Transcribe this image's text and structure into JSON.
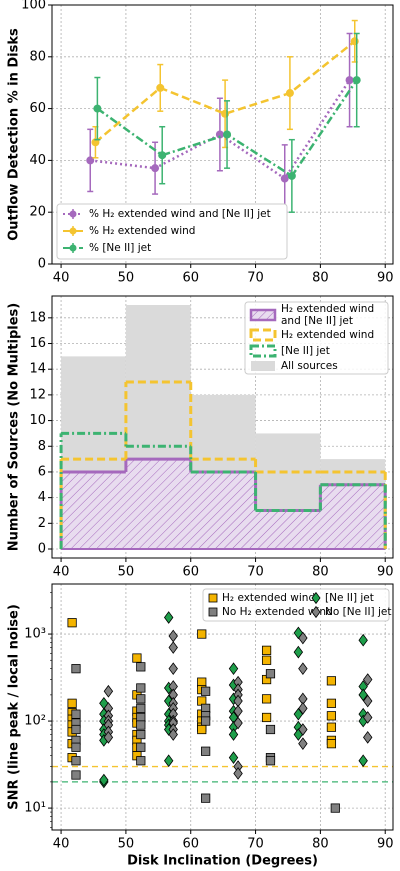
{
  "chart_data": [
    {
      "type": "line",
      "ylabel": "Outflow Detection % in Disks",
      "xlim": [
        38.6,
        91.2
      ],
      "ylim": [
        0,
        100
      ],
      "xticks": [
        40,
        50,
        60,
        70,
        80,
        90
      ],
      "yticks": [
        0,
        20,
        40,
        60,
        80,
        100
      ],
      "grid": true,
      "legend": "lower left",
      "series": [
        {
          "name": "% H₂ extended wind and [Ne II] jet",
          "color": "#a569bd",
          "linestyle": "dotted",
          "x": [
            44.5,
            54.5,
            64.5,
            74.5,
            84.5
          ],
          "values": [
            40,
            37,
            50,
            33,
            71
          ],
          "errors": [
            12,
            10,
            14,
            13,
            18
          ]
        },
        {
          "name": "% H₂ extended wind",
          "color": "#f4c430",
          "linestyle": "dashed",
          "x": [
            45.3,
            55.3,
            65.3,
            75.3,
            85.3
          ],
          "values": [
            47,
            68,
            58,
            66,
            86
          ],
          "errors": [
            6,
            9,
            13,
            14,
            8
          ]
        },
        {
          "name": "% [Ne II] jet",
          "color": "#3cb371",
          "linestyle": "dashdot",
          "x": [
            45.6,
            55.6,
            65.6,
            75.6,
            85.6
          ],
          "values": [
            60,
            42,
            50,
            34,
            71
          ],
          "errors": [
            12,
            11,
            13,
            14,
            18
          ]
        }
      ]
    },
    {
      "type": "histogram",
      "ylabel": "Number of Sources (No Multiples)",
      "bins": [
        40,
        50,
        60,
        70,
        80,
        90
      ],
      "xlim": [
        38.6,
        91.2
      ],
      "ylim": [
        -0.7,
        19.7
      ],
      "xticks": [
        40,
        50,
        60,
        70,
        80,
        90
      ],
      "yticks": [
        0,
        2,
        4,
        6,
        8,
        10,
        12,
        14,
        16,
        18
      ],
      "grid": true,
      "legend": "upper right",
      "series": [
        {
          "name": "H₂ extended wind and [Ne II] jet",
          "color": "#a569bd",
          "style": "hatch",
          "values": [
            6,
            7,
            6,
            3,
            5
          ]
        },
        {
          "name": "H₂ extended wind",
          "color": "#f4c430",
          "style": "dashed",
          "values": [
            7,
            13,
            7,
            6,
            6
          ]
        },
        {
          "name": "[Ne II] jet",
          "color": "#3cb371",
          "style": "dashdot",
          "values": [
            9,
            8,
            6,
            3,
            5
          ]
        },
        {
          "name": "All sources",
          "color": "#dadada",
          "style": "filled",
          "values": [
            15,
            19,
            12,
            9,
            7
          ]
        }
      ]
    },
    {
      "type": "scatter",
      "xlabel": "Disk Inclination (Degrees)",
      "ylabel": "SNR (line peak / local noise)",
      "log_y": true,
      "xlim": [
        38.6,
        91.2
      ],
      "ylim": [
        5.6,
        3760
      ],
      "xticks": [
        40,
        50,
        60,
        70,
        80,
        90
      ],
      "yticks": [
        {
          "value": 10,
          "label": "10¹"
        },
        {
          "value": 100,
          "label": "10²"
        },
        {
          "value": 1000,
          "label": "10³"
        }
      ],
      "grid": true,
      "legend": "upper right",
      "hlines": [
        {
          "value": 30,
          "color": "#f4c430"
        },
        {
          "value": 20,
          "color": "#3cb371"
        }
      ],
      "series": [
        {
          "name": "H₂ extended wind",
          "color": "#f4b400",
          "marker": "square",
          "x": [
            41.7,
            41.7,
            41.7,
            41.7,
            41.7,
            41.7,
            41.7,
            41.7,
            51.7,
            51.7,
            51.7,
            51.7,
            51.7,
            51.7,
            51.7,
            51.7,
            51.7,
            61.7,
            61.7,
            61.7,
            61.7,
            61.7,
            61.7,
            61.7,
            61.7,
            71.7,
            71.7,
            71.7,
            71.7,
            71.7,
            81.7,
            81.7,
            81.7,
            81.7,
            81.7,
            81.7
          ],
          "values": [
            1350,
            160,
            125,
            105,
            90,
            75,
            55,
            38,
            530,
            200,
            130,
            110,
            95,
            70,
            60,
            50,
            40,
            1000,
            280,
            230,
            170,
            120,
            100,
            85,
            80,
            650,
            500,
            300,
            180,
            110,
            290,
            160,
            115,
            85,
            60,
            55
          ]
        },
        {
          "name": "No H₂ extended wind",
          "color": "#808080",
          "marker": "square",
          "x": [
            42.3,
            42.3,
            42.3,
            42.3,
            42.3,
            42.3,
            42.3,
            42.3,
            52.3,
            52.3,
            52.3,
            52.3,
            52.3,
            52.3,
            52.3,
            52.3,
            52.3,
            62.3,
            62.3,
            62.3,
            62.3,
            62.3,
            62.3,
            72.3,
            72.3,
            72.3,
            72.3,
            82.3
          ],
          "values": [
            400,
            120,
            95,
            80,
            60,
            50,
            35,
            24,
            420,
            240,
            180,
            140,
            110,
            90,
            70,
            50,
            35,
            220,
            140,
            115,
            100,
            45,
            13,
            350,
            80,
            38,
            35,
            10
          ]
        },
        {
          "name": "[Ne II] jet",
          "color": "#1e9e4a",
          "marker": "diamond",
          "x": [
            46.6,
            46.6,
            46.6,
            46.6,
            46.6,
            46.6,
            46.6,
            46.6,
            56.6,
            56.6,
            56.6,
            56.6,
            56.6,
            56.6,
            56.6,
            56.6,
            66.6,
            66.6,
            66.6,
            66.6,
            66.6,
            66.6,
            66.6,
            66.6,
            76.6,
            76.6,
            76.6,
            76.6,
            76.6,
            86.6,
            86.6,
            86.6,
            86.6,
            86.6,
            86.6
          ],
          "values": [
            160,
            120,
            100,
            80,
            70,
            60,
            20,
            21,
            1550,
            240,
            170,
            120,
            100,
            90,
            80,
            35,
            400,
            260,
            180,
            130,
            110,
            85,
            70,
            38,
            620,
            1030,
            120,
            85,
            70,
            850,
            250,
            200,
            120,
            100,
            35
          ]
        },
        {
          "name": "No [Ne II] jet",
          "color": "#808080",
          "marker": "diamond",
          "x": [
            47.3,
            47.3,
            47.3,
            47.3,
            47.3,
            47.3,
            47.3,
            57.3,
            57.3,
            57.3,
            57.3,
            57.3,
            57.3,
            57.3,
            57.3,
            57.3,
            57.3,
            57.3,
            57.3,
            67.3,
            67.3,
            67.3,
            67.3,
            67.3,
            67.3,
            67.3,
            67.3,
            77.3,
            77.3,
            77.3,
            77.3,
            77.3,
            77.3,
            87.3,
            87.3,
            87.3,
            87.3
          ],
          "values": [
            220,
            140,
            115,
            100,
            90,
            75,
            65,
            950,
            700,
            400,
            250,
            200,
            160,
            140,
            120,
            100,
            95,
            80,
            70,
            280,
            230,
            200,
            170,
            130,
            95,
            30,
            25,
            900,
            400,
            180,
            140,
            80,
            55,
            300,
            170,
            110,
            65
          ]
        }
      ]
    }
  ]
}
